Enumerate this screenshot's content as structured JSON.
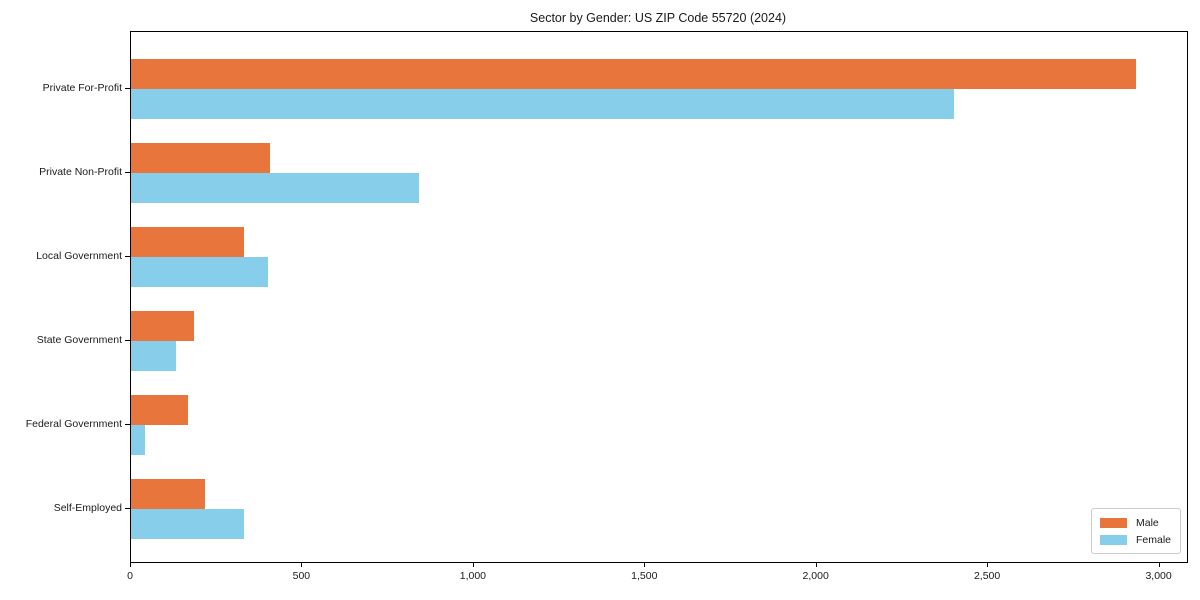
{
  "title": "Sector by Gender: US ZIP Code 55720 (2024)",
  "colors": {
    "male": "#e8763c",
    "female": "#87ceeb",
    "axis": "#000000",
    "text": "#1a1a1a",
    "legend_border": "#cccccc",
    "background": "#ffffff"
  },
  "legend": {
    "position": "lower right",
    "items": [
      {
        "label": "Male",
        "color": "#e8763c"
      },
      {
        "label": "Female",
        "color": "#87ceeb"
      }
    ]
  },
  "chart_data": {
    "type": "bar",
    "orientation": "horizontal",
    "title": "Sector by Gender: US ZIP Code 55720 (2024)",
    "categories": [
      "Private For-Profit",
      "Private Non-Profit",
      "Local Government",
      "State Government",
      "Federal Government",
      "Self-Employed"
    ],
    "series": [
      {
        "name": "Male",
        "color": "#e8763c",
        "values": [
          2930,
          405,
          330,
          185,
          165,
          215
        ]
      },
      {
        "name": "Female",
        "color": "#87ceeb",
        "values": [
          2400,
          840,
          400,
          130,
          40,
          330
        ]
      }
    ],
    "xlabel": "",
    "ylabel": "",
    "xlim": [
      0,
      3080
    ],
    "xticks": [
      0,
      500,
      1000,
      1500,
      2000,
      2500,
      3000
    ],
    "xtick_labels": [
      "0",
      "500",
      "1,000",
      "1,500",
      "2,000",
      "2,500",
      "3,000"
    ],
    "grid": false,
    "legend_position": "lower right"
  }
}
